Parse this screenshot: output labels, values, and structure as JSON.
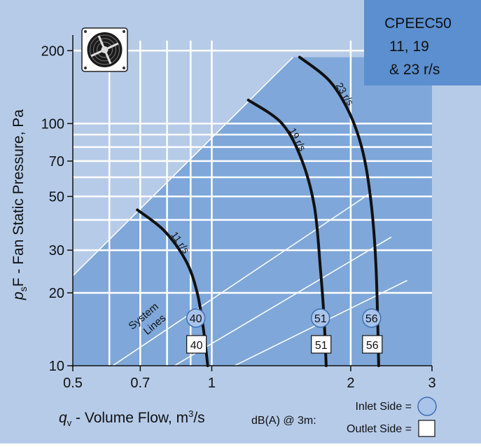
{
  "colors": {
    "background": "#b6cbe8",
    "operating_region": "#7fa7d9",
    "title_box": "#5b8fd0",
    "curve": "#111111",
    "grid": "#ffffff",
    "inlet_marker_fill": "#a9c4ea",
    "inlet_marker_stroke": "#3e6fb3"
  },
  "title_box": {
    "lines": [
      "CPEEC50",
      "11, 19",
      "& 23 r/s"
    ]
  },
  "icon": "axial-fan-icon",
  "chart_data": {
    "type": "line",
    "x_scale": "log",
    "y_scale": "log",
    "xlim": [
      0.5,
      3
    ],
    "ylim": [
      10,
      220
    ],
    "x_ticks": [
      {
        "value": 0.5,
        "label": "0.5"
      },
      {
        "value": 0.7,
        "label": "0.7"
      },
      {
        "value": 1,
        "label": "1"
      },
      {
        "value": 2,
        "label": "2"
      },
      {
        "value": 3,
        "label": "3"
      }
    ],
    "y_ticks": [
      {
        "value": 10,
        "label": "10"
      },
      {
        "value": 20,
        "label": "20"
      },
      {
        "value": 30,
        "label": "30"
      },
      {
        "value": 50,
        "label": "50"
      },
      {
        "value": 70,
        "label": "70"
      },
      {
        "value": 100,
        "label": "100"
      },
      {
        "value": 200,
        "label": "200"
      }
    ],
    "x_grid": [
      0.6,
      0.7,
      0.8,
      0.9,
      1,
      2
    ],
    "y_grid": [
      20,
      30,
      40,
      50,
      60,
      70,
      80,
      90,
      100
    ],
    "xlabel": {
      "q": "q",
      "sub": "v",
      "text": " - Volume Flow, m",
      "sup": "3",
      "tail": "/s"
    },
    "ylabel": {
      "p": "p",
      "sub": "s",
      "text": "F - Fan Static Pressure, Pa"
    },
    "operating_region": [
      [
        0.5,
        10
      ],
      [
        0.5,
        23.5
      ],
      [
        1.5,
        188
      ],
      [
        3,
        188
      ],
      [
        3,
        10
      ]
    ],
    "system_lines": [
      {
        "x0": 0.5,
        "y0": 23.5,
        "x1": 1.5,
        "y1": 188
      },
      {
        "x0": 0.61,
        "y0": 10,
        "x1": 2.22,
        "y1": 52
      },
      {
        "x0": 0.83,
        "y0": 10,
        "x1": 2.45,
        "y1": 34
      },
      {
        "x0": 1.12,
        "y0": 10,
        "x1": 2.65,
        "y1": 22.5
      }
    ],
    "system_lines_label": [
      "System",
      "Lines"
    ],
    "series": [
      {
        "name": "11 r/s",
        "points": [
          [
            0.69,
            44
          ],
          [
            0.79,
            36
          ],
          [
            0.88,
            27
          ],
          [
            0.93,
            20
          ],
          [
            0.96,
            14
          ],
          [
            0.98,
            10
          ]
        ]
      },
      {
        "name": "19 r/s",
        "points": [
          [
            1.2,
            125
          ],
          [
            1.42,
            100
          ],
          [
            1.57,
            70
          ],
          [
            1.67,
            45
          ],
          [
            1.72,
            25
          ],
          [
            1.75,
            16
          ],
          [
            1.77,
            10
          ]
        ]
      },
      {
        "name": "23 r/s",
        "points": [
          [
            1.55,
            188
          ],
          [
            1.8,
            150
          ],
          [
            1.99,
            110
          ],
          [
            2.13,
            75
          ],
          [
            2.22,
            45
          ],
          [
            2.27,
            25
          ],
          [
            2.3,
            10
          ]
        ]
      }
    ],
    "sound_levels": [
      {
        "series": "11 r/s",
        "inlet": "40",
        "outlet": "40"
      },
      {
        "series": "19 r/s",
        "inlet": "51",
        "outlet": "51"
      },
      {
        "series": "23 r/s",
        "inlet": "56",
        "outlet": "56"
      }
    ]
  },
  "legend": {
    "prefix": "dB(A) @ 3m:",
    "inlet": "Inlet Side =",
    "outlet": "Outlet  Side ="
  }
}
